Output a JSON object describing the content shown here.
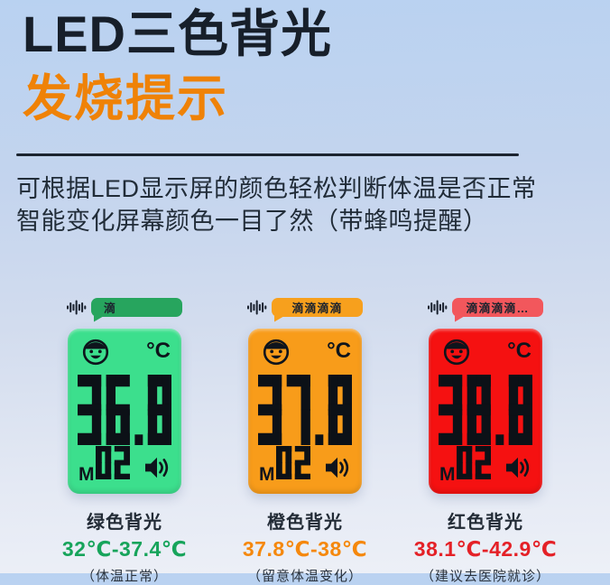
{
  "page": {
    "title": "LED三色背光",
    "subtitle": "发烧提示",
    "description_line1": "可根据LED显示屏的颜色轻松判断体温是否正常",
    "description_line2": "智能变化屏幕颜色一目了然（带蜂鸣提醒）"
  },
  "colors": {
    "title": "#171f2a",
    "subtitle_orange": "#ef8207",
    "divider": "#1b2430",
    "body_text": "#212c38",
    "lcd_ink": "#0e141c"
  },
  "icons": {
    "sound_wave": "sound-wave-icon",
    "smiley": "smiley-face-icon",
    "speaker": "speaker-icon"
  },
  "thermometers": [
    {
      "beep_text": "滴",
      "bubble_color": "#27a55e",
      "display_color": "#3cdf8d",
      "unit": "°C",
      "temperature": "36.8",
      "memory_prefix": "M",
      "memory_digits": "02",
      "label": "绿色背光",
      "range": "32℃-37.4℃",
      "range_color": "#17a45b",
      "note": "（体温正常）"
    },
    {
      "beep_text": "滴滴滴滴",
      "bubble_color": "#f7a01d",
      "display_color": "#f89c1a",
      "unit": "°C",
      "temperature": "37.8",
      "memory_prefix": "M",
      "memory_digits": "02",
      "label": "橙色背光",
      "range": "37.8℃-38℃",
      "range_color": "#f5880d",
      "note": "（留意体温变化）"
    },
    {
      "beep_text": "滴滴滴滴…",
      "bubble_color": "#f2575c",
      "display_color": "#f51111",
      "unit": "°C",
      "temperature": "38.8",
      "memory_prefix": "M",
      "memory_digits": "02",
      "label": "红色背光",
      "range": "38.1℃-42.9℃",
      "range_color": "#e42127",
      "note": "（建议去医院就诊）"
    }
  ]
}
